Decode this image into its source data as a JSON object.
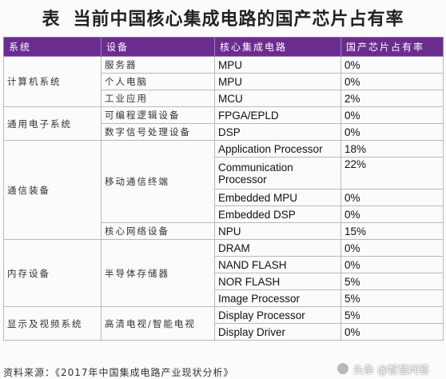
{
  "title": {
    "lead": "表",
    "text": "当前中国核心集成电路的国产芯片占有率"
  },
  "table": {
    "headers": [
      "系统",
      "设备",
      "核心集成电路",
      "国产芯片占有率"
    ],
    "groups": [
      {
        "system": "计算机系统",
        "rows": [
          {
            "device": "服务器",
            "ic": "MPU",
            "share": "0%"
          },
          {
            "device": "个人电脑",
            "ic": "MPU",
            "share": "0%"
          },
          {
            "device": "工业应用",
            "ic": "MCU",
            "share": "2%"
          }
        ]
      },
      {
        "system": "通用电子系统",
        "rows": [
          {
            "device": "可编程逻辑设备",
            "ic": "FPGA/EPLD",
            "share": "0%"
          },
          {
            "device": "数字信号处理设备",
            "ic": "DSP",
            "share": "0%"
          }
        ]
      },
      {
        "system": "通信装备",
        "rows": [
          {
            "device": "移动通信终端",
            "ic": "Application Processor",
            "share": "18%"
          },
          {
            "device": "",
            "ic": "Communication Processor",
            "share": "22%"
          },
          {
            "device": "",
            "ic": "Embedded MPU",
            "share": "0%"
          },
          {
            "device": "",
            "ic": "Embedded DSP",
            "share": "0%"
          },
          {
            "device": "核心网络设备",
            "ic": "NPU",
            "share": "15%"
          }
        ]
      },
      {
        "system": "内存设备",
        "rows": [
          {
            "device": "半导体存储器",
            "ic": "DRAM",
            "share": "0%"
          },
          {
            "device": "",
            "ic": "NAND FLASH",
            "share": "0%"
          },
          {
            "device": "",
            "ic": "NOR FLASH",
            "share": "5%"
          },
          {
            "device": "",
            "ic": "Image Processor",
            "share": "5%"
          }
        ]
      },
      {
        "system": "显示及视频系统",
        "rows": [
          {
            "device": "高清电视/智能电视",
            "ic": "Display Processor",
            "share": "5%"
          },
          {
            "device": "",
            "ic": "Display Driver",
            "share": "0%"
          }
        ]
      }
    ]
  },
  "footer": "资料来源：《2017年中国集成电路产业现状分析》",
  "watermark": "头条 @智慧问答"
}
